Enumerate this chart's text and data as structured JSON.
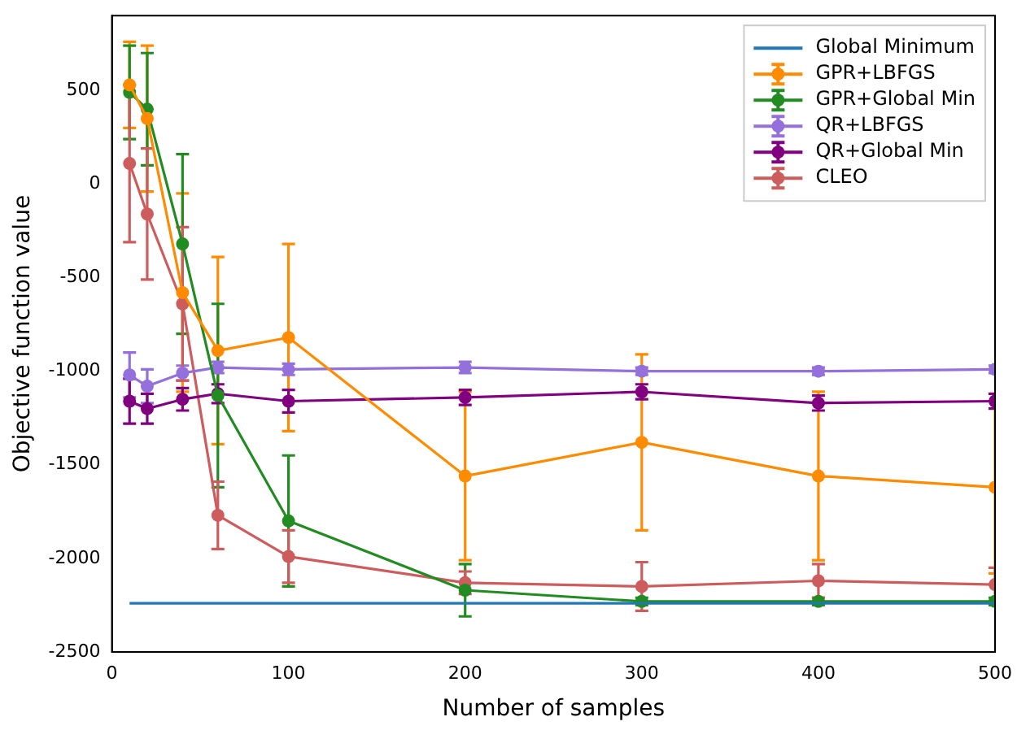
{
  "chart_data": {
    "type": "line",
    "xlabel": "Number of samples",
    "ylabel": "Objective function value",
    "x": [
      10,
      20,
      40,
      60,
      100,
      200,
      300,
      400,
      500
    ],
    "xlim": [
      0,
      500
    ],
    "xticks": [
      0,
      100,
      200,
      300,
      400,
      500
    ],
    "ylim": [
      -2500,
      900
    ],
    "yticks": [
      -2500,
      -2000,
      -1500,
      -1000,
      -500,
      0,
      500
    ],
    "grid": false,
    "legend": "top right",
    "marker": "circle",
    "line_style": "solid",
    "series": [
      {
        "name": "Global Minimum",
        "color": "#1f77b4",
        "marker": "none",
        "values": [
          -2240,
          -2240,
          -2240,
          -2240,
          -2240,
          -2240,
          -2240,
          -2240,
          -2240
        ]
      },
      {
        "name": "GPR+LBFGS",
        "color": "#ff8c00",
        "values": [
          530,
          350,
          -580,
          -890,
          -820,
          -1560,
          -1380,
          -1560,
          -1620
        ],
        "errors": [
          230,
          390,
          530,
          500,
          500,
          450,
          470,
          450,
          460
        ]
      },
      {
        "name": "GPR+Global Min",
        "color": "#228b22",
        "values": [
          490,
          400,
          -320,
          -1130,
          -1800,
          -2170,
          -2230,
          -2230,
          -2230
        ],
        "errors": [
          250,
          300,
          480,
          490,
          350,
          140,
          20,
          20,
          20
        ]
      },
      {
        "name": "QR+LBFGS",
        "color": "#9370db",
        "values": [
          -1020,
          -1080,
          -1010,
          -980,
          -990,
          -980,
          -1000,
          -1000,
          -990
        ],
        "errors": [
          120,
          90,
          40,
          30,
          30,
          30,
          20,
          20,
          20
        ]
      },
      {
        "name": "QR+Global Min",
        "color": "#800080",
        "values": [
          -1160,
          -1200,
          -1150,
          -1120,
          -1160,
          -1140,
          -1110,
          -1170,
          -1160
        ],
        "errors": [
          120,
          80,
          60,
          50,
          60,
          40,
          40,
          40,
          40
        ]
      },
      {
        "name": "CLEO",
        "color": "#cd5c5c",
        "values": [
          110,
          -160,
          -640,
          -1770,
          -1990,
          -2130,
          -2150,
          -2120,
          -2140
        ],
        "errors": [
          420,
          350,
          410,
          180,
          140,
          60,
          130,
          90,
          90
        ]
      }
    ]
  }
}
